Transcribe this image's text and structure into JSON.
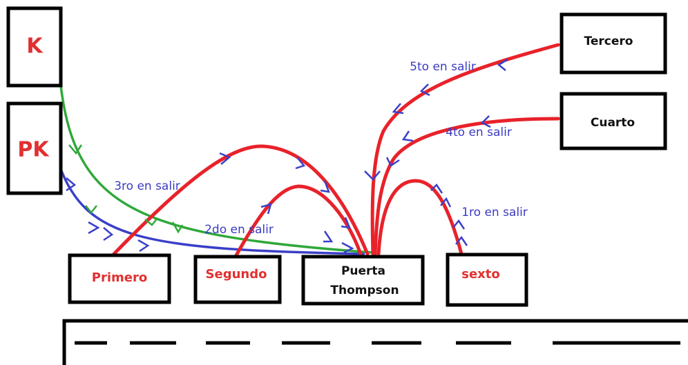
{
  "nodes": [
    {
      "label": "K"
    },
    {
      "label": "PK"
    },
    {
      "label": "Primero"
    },
    {
      "label": "Segundo"
    },
    {
      "label_lines": [
        "Puerta",
        "Thompson"
      ]
    },
    {
      "label": "sexto"
    },
    {
      "label": "Tercero"
    },
    {
      "label": "Cuarto"
    }
  ],
  "annotations": [
    "3ro en salir",
    "2do en salir",
    "1ro en salir",
    "4to en salir",
    "5to en salir"
  ]
}
